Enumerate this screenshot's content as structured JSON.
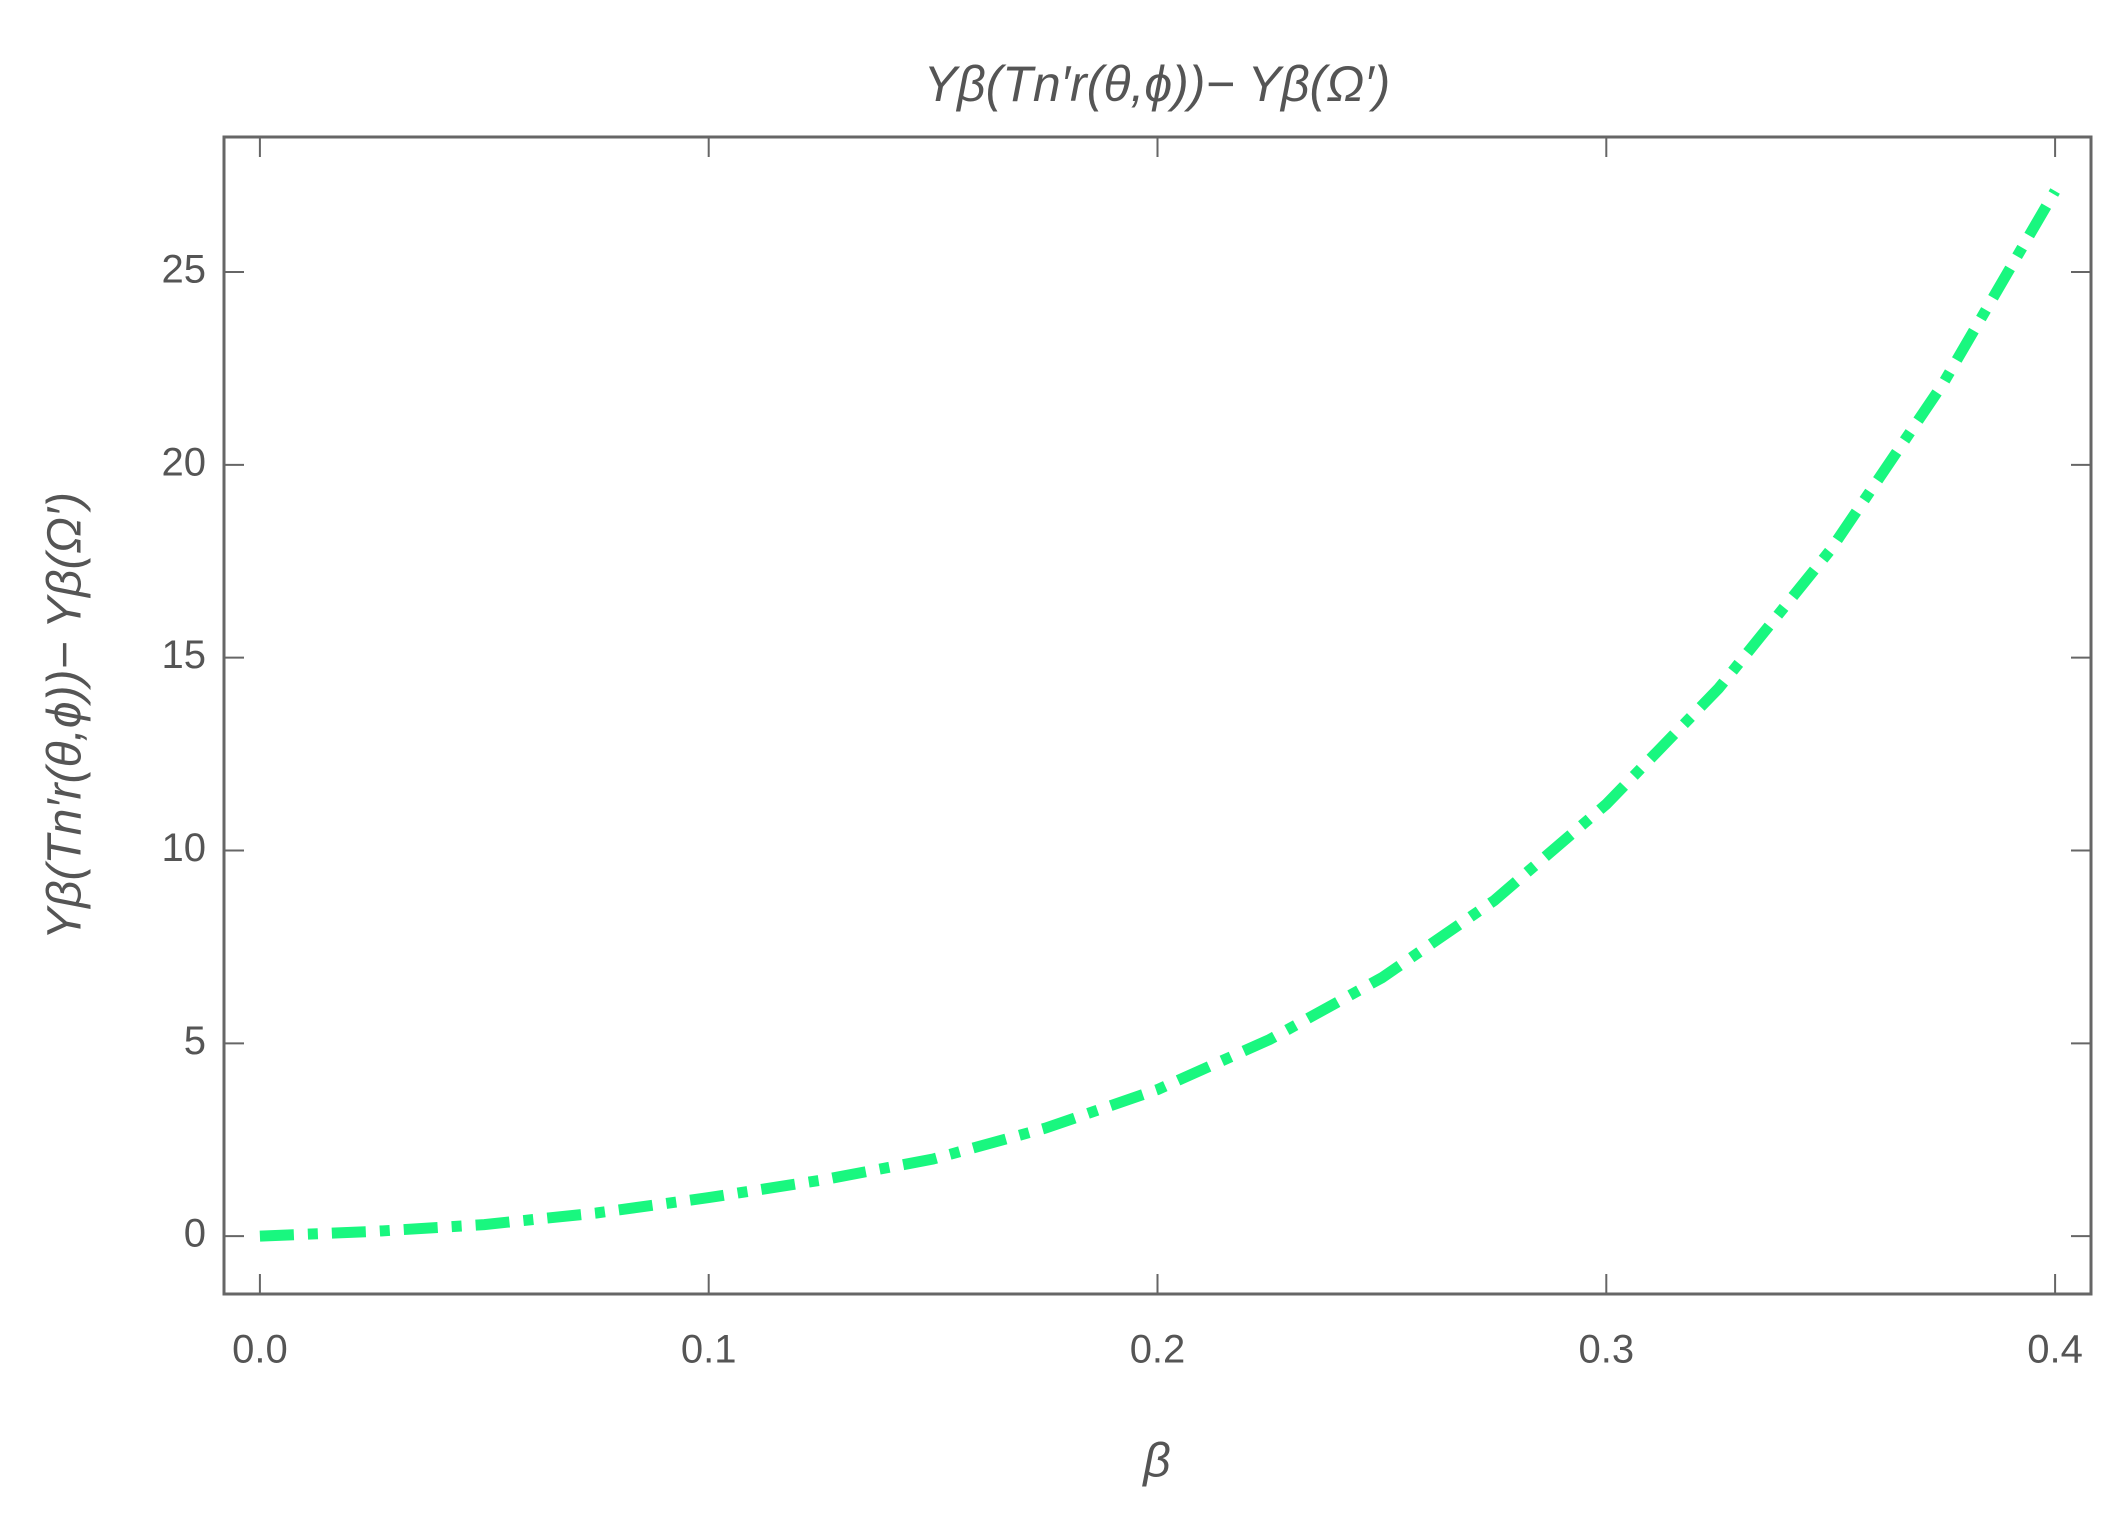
{
  "chart_data": {
    "type": "line",
    "title": "Yβ(Tn′r(θ,ϕ))− Yβ(Ω′)",
    "x_label": "β",
    "y_label": "Yβ(Tn′r(θ,ϕ))− Yβ(Ω′)",
    "x": [
      0,
      0.025,
      0.05,
      0.075,
      0.1,
      0.125,
      0.15,
      0.175,
      0.2,
      0.225,
      0.25,
      0.275,
      0.3,
      0.325,
      0.35,
      0.375,
      0.4
    ],
    "series": [
      {
        "color": "#19f77f",
        "values": [
          0,
          0.12,
          0.3,
          0.6,
          1.0,
          1.45,
          2.0,
          2.8,
          3.8,
          5.1,
          6.7,
          8.7,
          11.2,
          14.2,
          17.8,
          22.1,
          27.1
        ]
      }
    ],
    "xlim": [
      -0.008,
      0.408
    ],
    "ylim": [
      -1.5,
      28.5
    ],
    "xticks": [
      {
        "value": 0,
        "label": "0.0"
      },
      0.1,
      0.2,
      0.3,
      0.4
    ],
    "yticks": [
      0,
      5,
      10,
      15,
      20,
      25
    ]
  }
}
